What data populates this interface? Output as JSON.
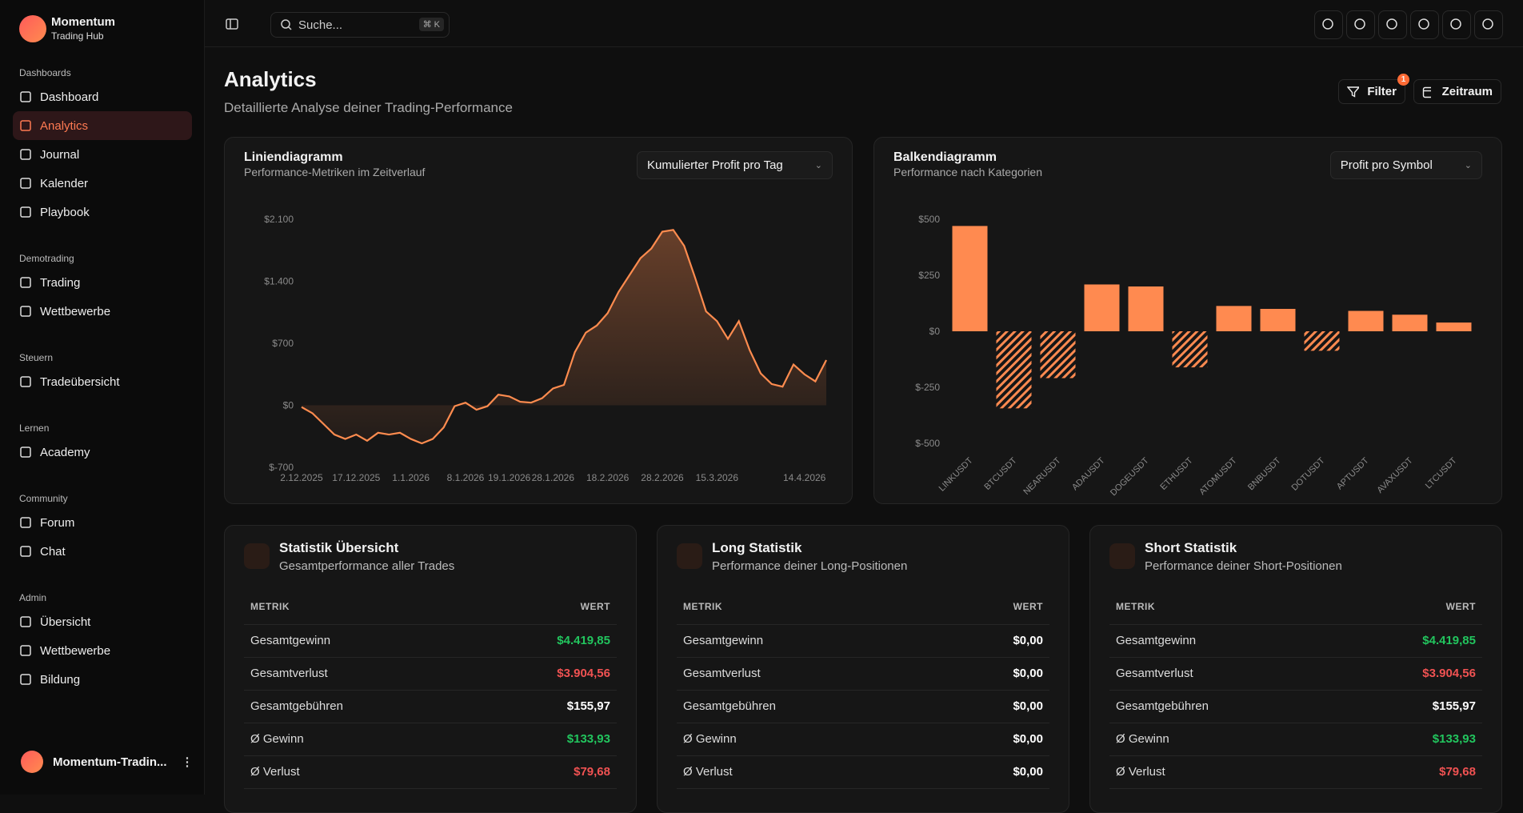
{
  "sidebar": {
    "brand": "Momentum",
    "tagline": "Trading Hub",
    "sections": [
      {
        "label": "Dashboards",
        "items": [
          "Dashboard",
          "Analytics",
          "Journal",
          "Kalender",
          "Playbook"
        ]
      },
      {
        "label": "Demotrading",
        "items": [
          "Trading",
          "Wettbewerbe"
        ]
      },
      {
        "label": "Steuern",
        "items": [
          "Tradeübersicht"
        ]
      },
      {
        "label": "Lernen",
        "items": [
          "Academy"
        ]
      },
      {
        "label": "Community",
        "items": [
          "Forum",
          "Chat"
        ]
      },
      {
        "label": "Admin",
        "items": [
          "Übersicht",
          "Wettbewerbe",
          "Bildung"
        ]
      }
    ],
    "user": "Momentum-Tradin..."
  },
  "topbar": {
    "search": "Suche...",
    "shortcut": "⌘ K"
  },
  "page": {
    "title": "Analytics",
    "subtitle": "Detaillierte Analyse deiner Trading-Performance",
    "filter": "Filter",
    "filter_badge": 1,
    "range": "Zeitraum"
  },
  "chart_data": [
    {
      "type": "line",
      "title": "Liniendiagramm",
      "subtitle": "Performance-Metriken im Zeitverlauf",
      "dropdown": "Kumulierter Profit pro Tag",
      "color": "#ff8c4f",
      "area": true,
      "categories": [
        "2.12.2025",
        null,
        null,
        null,
        null,
        "17.12.2025",
        null,
        null,
        null,
        null,
        "1.1.2026",
        null,
        null,
        null,
        null,
        "8.1.2026",
        null,
        null,
        null,
        "19.1.2026",
        null,
        null,
        null,
        "28.1.2026",
        null,
        null,
        null,
        null,
        "18.2.2026",
        null,
        null,
        null,
        null,
        "28.2.2026",
        null,
        null,
        null,
        null,
        "15.3.2026",
        null,
        null,
        null,
        null,
        null,
        null,
        null,
        "14.4.2026",
        null,
        null
      ],
      "values": [
        -20,
        -90,
        -210,
        -330,
        -380,
        -330,
        -400,
        -310,
        -330,
        -310,
        -380,
        -430,
        -380,
        -250,
        -10,
        30,
        -50,
        -10,
        120,
        100,
        40,
        30,
        80,
        190,
        230,
        600,
        820,
        900,
        1040,
        1280,
        1470,
        1660,
        1770,
        1960,
        1980,
        1800,
        1440,
        1060,
        950,
        750,
        950,
        620,
        360,
        240,
        210,
        460,
        350,
        270,
        510
      ],
      "ylim": [
        -700,
        2100
      ],
      "yticks": [
        {
          "value": -700,
          "label": "$-700"
        },
        {
          "value": 0,
          "label": "$0"
        },
        {
          "value": 700,
          "label": "$700"
        },
        {
          "value": 1400,
          "label": "$1.400"
        },
        {
          "value": 2100,
          "label": "$2.100"
        }
      ]
    },
    {
      "type": "bar",
      "title": "Balkendiagramm",
      "subtitle": "Performance nach Kategorien",
      "dropdown": "Profit pro Symbol",
      "color": "#ff8a50",
      "categories": [
        "LINKUSDT",
        "BTCUSDT",
        "NEARUSDT",
        "ADAUSDT",
        "DOGEUSDT",
        "ETHUSDT",
        "ATOMUSDT",
        "BNBUSDT",
        "DOTUSDT",
        "APTUSDT",
        "AVAXUSDT",
        "LTCUSDT"
      ],
      "values": [
        470,
        -344,
        -209,
        209,
        200,
        -161,
        113,
        100,
        -87,
        91,
        74,
        39
      ],
      "ylim": [
        -500,
        500
      ],
      "yticks": [
        {
          "value": -500,
          "label": "$-500"
        },
        {
          "value": -250,
          "label": "$-250"
        },
        {
          "value": 0,
          "label": "$0"
        },
        {
          "value": 250,
          "label": "$250"
        },
        {
          "value": 500,
          "label": "$500"
        }
      ]
    }
  ],
  "tables": [
    {
      "title": "Statistik Übersicht",
      "subtitle": "Gesamtperformance aller Trades",
      "columns": [
        "METRIK",
        "WERT"
      ],
      "rows": [
        [
          "Gesamtgewinn",
          "$4.419,85"
        ],
        [
          "Gesamtverlust",
          "$3.904,56"
        ],
        [
          "Gesamtgebühren",
          "$155,97"
        ],
        [
          "Ø Gewinn",
          "$133,93"
        ],
        [
          "Ø Verlust",
          "$79,68"
        ]
      ],
      "row_colors": [
        "#22c55e",
        "#f05252",
        "#ffffff",
        "#22c55e",
        "#f05252"
      ]
    },
    {
      "title": "Long Statistik",
      "subtitle": "Performance deiner Long-Positionen",
      "columns": [
        "METRIK",
        "WERT"
      ],
      "rows": [
        [
          "Gesamtgewinn",
          "$0,00"
        ],
        [
          "Gesamtverlust",
          "$0,00"
        ],
        [
          "Gesamtgebühren",
          "$0,00"
        ],
        [
          "Ø Gewinn",
          "$0,00"
        ],
        [
          "Ø Verlust",
          "$0,00"
        ]
      ],
      "row_colors": [
        "#ffffff",
        "#ffffff",
        "#ffffff",
        "#ffffff",
        "#ffffff"
      ]
    },
    {
      "title": "Short Statistik",
      "subtitle": "Performance deiner Short-Positionen",
      "columns": [
        "METRIK",
        "WERT"
      ],
      "rows": [
        [
          "Gesamtgewinn",
          "$4.419,85"
        ],
        [
          "Gesamtverlust",
          "$3.904,56"
        ],
        [
          "Gesamtgebühren",
          "$155,97"
        ],
        [
          "Ø Gewinn",
          "$133,93"
        ],
        [
          "Ø Verlust",
          "$79,68"
        ]
      ],
      "row_colors": [
        "#22c55e",
        "#f05252",
        "#ffffff",
        "#22c55e",
        "#f05252"
      ]
    }
  ]
}
